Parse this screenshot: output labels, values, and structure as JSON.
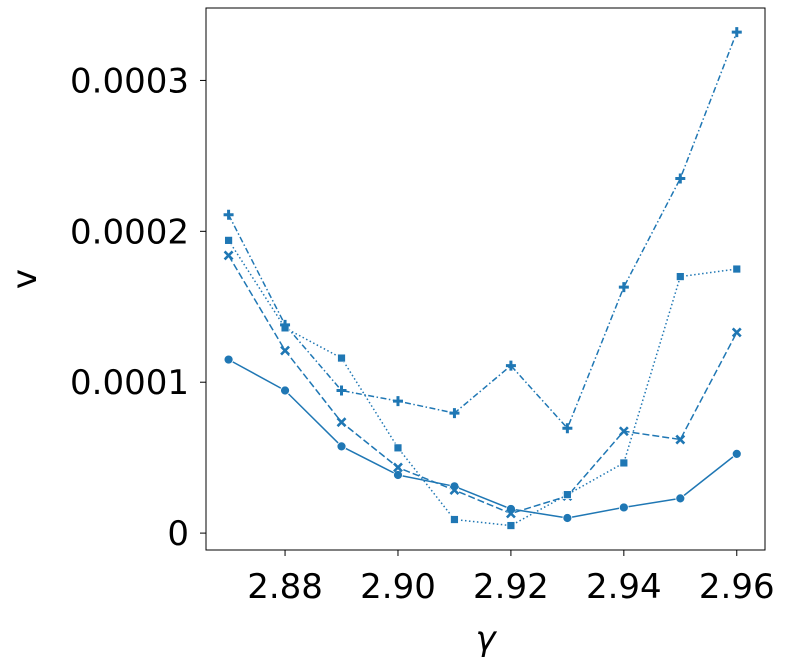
{
  "chart_data": {
    "type": "line",
    "title": "",
    "xlabel": "γ",
    "ylabel": "v",
    "x": [
      2.87,
      2.88,
      2.89,
      2.9,
      2.91,
      2.92,
      2.93,
      2.94,
      2.95,
      2.96
    ],
    "xlim": [
      2.866,
      2.965
    ],
    "ylim": [
      -1.12e-05,
      0.000348
    ],
    "x_ticks": [
      2.88,
      2.9,
      2.92,
      2.94,
      2.96
    ],
    "x_tick_labels": [
      "2.88",
      "2.90",
      "2.92",
      "2.94",
      "2.96"
    ],
    "y_ticks": [
      0,
      0.0001,
      0.0002,
      0.0003
    ],
    "y_tick_labels": [
      "0",
      "0.0001",
      "0.0002",
      "0.0003"
    ],
    "grid": false,
    "legend": "none",
    "line_color": "#1f77b4",
    "series": [
      {
        "marker": "circle",
        "linestyle": "solid",
        "values": [
          0.000115,
          9.45e-05,
          5.75e-05,
          3.85e-05,
          3.1e-05,
          1.6e-05,
          1e-05,
          1.7e-05,
          2.3e-05,
          5.25e-05
        ]
      },
      {
        "marker": "x",
        "linestyle": "dashed",
        "values": [
          0.000184,
          0.000121,
          7.35e-05,
          4.35e-05,
          2.85e-05,
          1.3e-05,
          2.45e-05,
          6.75e-05,
          6.2e-05,
          0.000133
        ]
      },
      {
        "marker": "square",
        "linestyle": "dotted",
        "values": [
          0.000194,
          0.000136,
          0.000116,
          5.65e-05,
          9e-06,
          5e-06,
          2.55e-05,
          4.65e-05,
          0.00017,
          0.000175
        ]
      },
      {
        "marker": "plus",
        "linestyle": "dashdot",
        "values": [
          0.000211,
          0.000138,
          9.45e-05,
          8.75e-05,
          7.95e-05,
          0.000111,
          6.95e-05,
          0.000163,
          0.000235,
          0.000332
        ]
      }
    ]
  }
}
